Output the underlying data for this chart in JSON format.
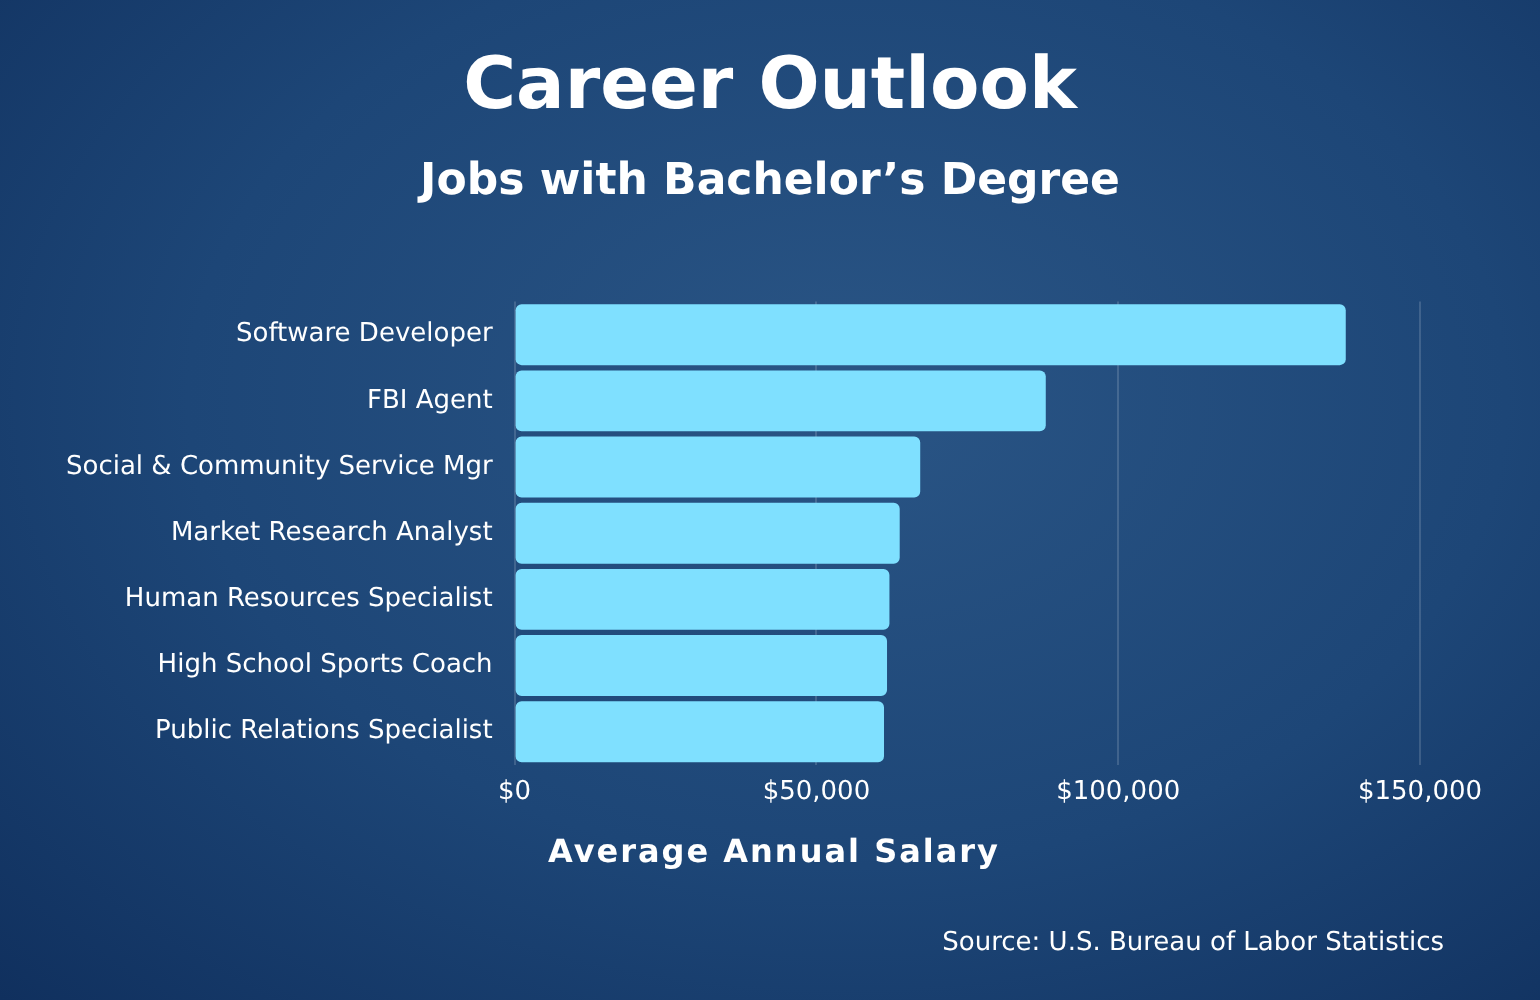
{
  "chart_data": {
    "type": "bar",
    "orientation": "horizontal",
    "title": "Career Outlook",
    "subtitle": "Jobs with Bachelor’s Degree",
    "xlabel": "Average Annual Salary",
    "categories": [
      "Software Developer",
      "FBI Agent",
      "Social & Community Service Mgr",
      "Market Research Analyst",
      "Human Resources Specialist",
      "High School Sports Coach",
      "Public Relations Specialist"
    ],
    "values": [
      137700,
      88000,
      67200,
      63800,
      62100,
      61700,
      61200
    ],
    "color": "#7fe0ff",
    "xlim": [
      0,
      150000
    ],
    "xticks": [
      {
        "value": 0,
        "label": "$0"
      },
      {
        "value": 50000,
        "label": "$50,000"
      },
      {
        "value": 100000,
        "label": "$100,000"
      },
      {
        "value": 150000,
        "label": "$150,000"
      }
    ],
    "grid": "x",
    "legend": false,
    "annotations": [
      "Source: U.S. Bureau of Labor Statistics"
    ]
  }
}
